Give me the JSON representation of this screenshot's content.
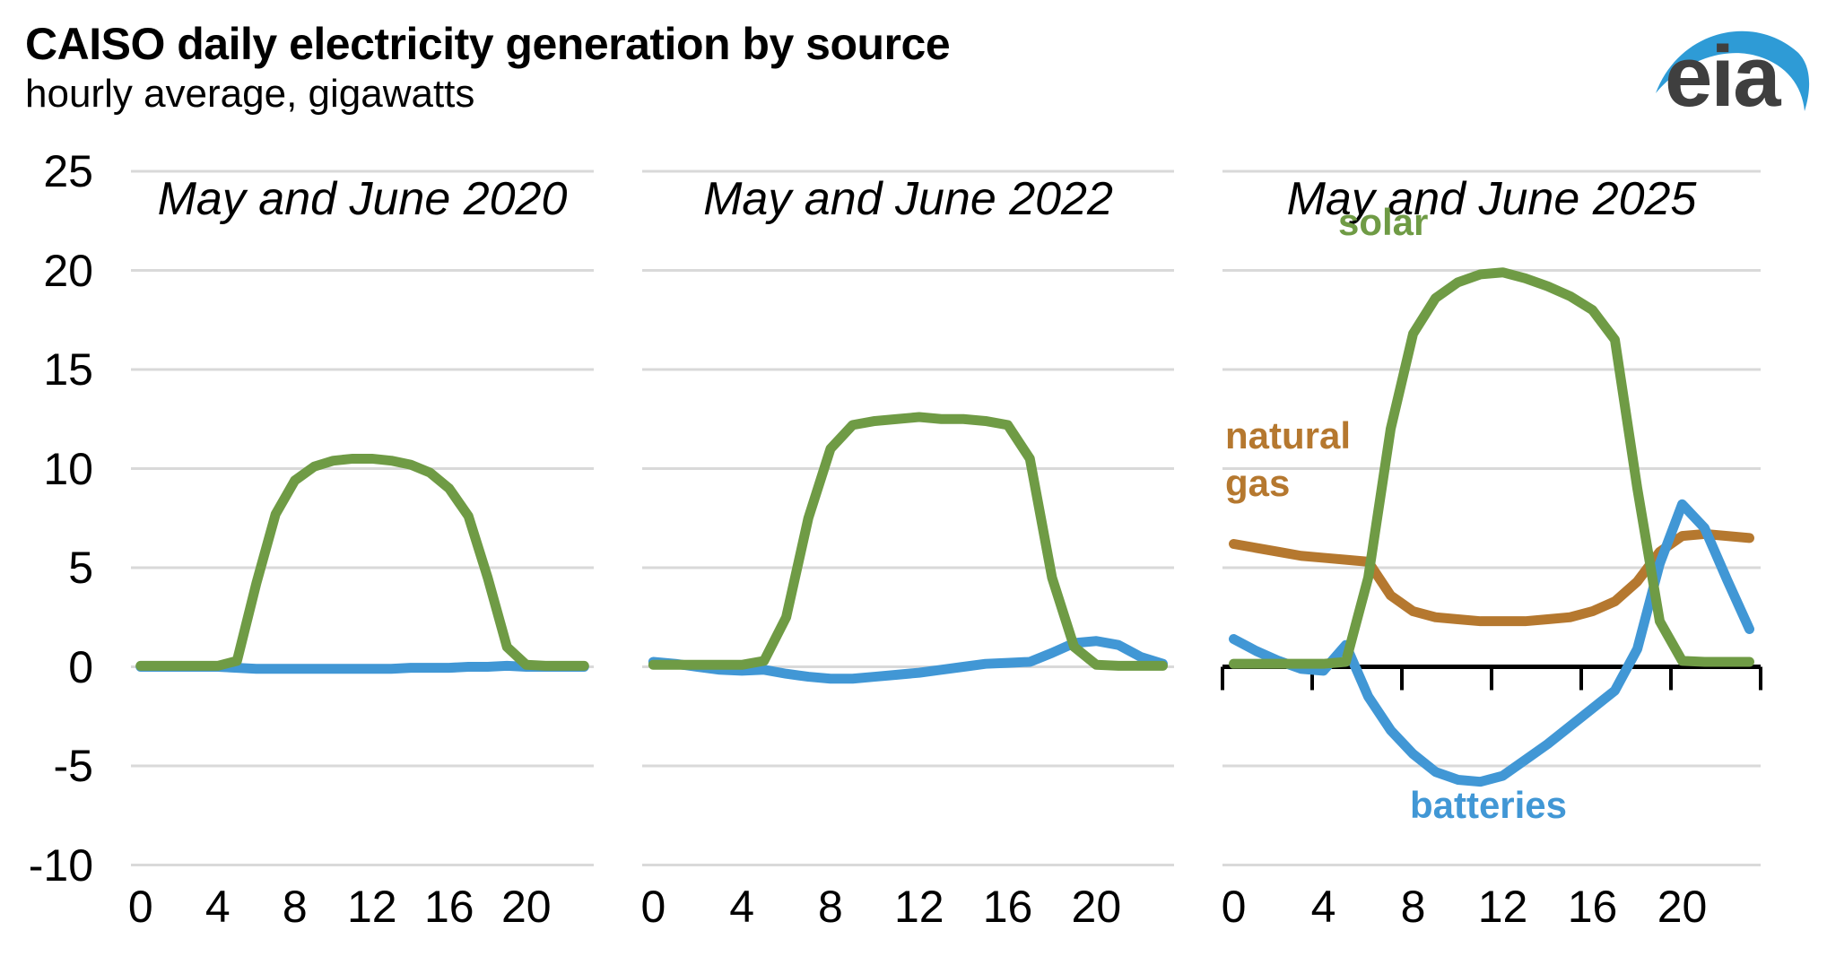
{
  "header": {
    "title": "CAISO daily electricity generation by source",
    "subtitle": "hourly average, gigawatts"
  },
  "logo": {
    "text": "eia",
    "text_color": "#3F3F3F",
    "swoosh_color": "#2E9BD6"
  },
  "axes": {
    "y_ticks": [
      25,
      20,
      15,
      10,
      5,
      0,
      -5,
      -10
    ],
    "x_ticks": [
      0,
      4,
      8,
      12,
      16,
      20
    ],
    "ylim": [
      -10,
      25
    ],
    "xlim": [
      0,
      23
    ],
    "gridline_color": "#D9D9D9",
    "zero_axis_color": "#000000"
  },
  "chart_data": {
    "type": "line",
    "x_unit": "hour of day",
    "y_unit": "gigawatts",
    "hours": [
      0,
      1,
      2,
      3,
      4,
      5,
      6,
      7,
      8,
      9,
      10,
      11,
      12,
      13,
      14,
      15,
      16,
      17,
      18,
      19,
      20,
      21,
      22,
      23
    ],
    "ylim": [
      -10,
      25
    ],
    "grid": "horizontal",
    "legend_position": "inline-annotations",
    "panels": [
      {
        "title": "May and June 2020",
        "series": [
          {
            "name": "batteries",
            "color": "#4197D5",
            "values": [
              0,
              0,
              0,
              0,
              0,
              -0.05,
              -0.1,
              -0.1,
              -0.1,
              -0.1,
              -0.1,
              -0.1,
              -0.1,
              -0.1,
              -0.05,
              -0.05,
              -0.05,
              0,
              0,
              0.05,
              0,
              0,
              0,
              0
            ]
          },
          {
            "name": "solar",
            "color": "#6F9B45",
            "values": [
              0.05,
              0.05,
              0.05,
              0.05,
              0.05,
              0.3,
              4.2,
              7.7,
              9.4,
              10.1,
              10.4,
              10.5,
              10.5,
              10.4,
              10.2,
              9.8,
              9.0,
              7.6,
              4.5,
              1.0,
              0.1,
              0.05,
              0.05,
              0.05
            ]
          }
        ]
      },
      {
        "title": "May and June 2022",
        "series": [
          {
            "name": "batteries",
            "color": "#4197D5",
            "values": [
              0.25,
              0.15,
              0,
              -0.15,
              -0.2,
              -0.15,
              -0.35,
              -0.5,
              -0.6,
              -0.6,
              -0.5,
              -0.4,
              -0.3,
              -0.15,
              0,
              0.15,
              0.2,
              0.25,
              0.7,
              1.2,
              1.3,
              1.1,
              0.5,
              0.15
            ]
          },
          {
            "name": "solar",
            "color": "#6F9B45",
            "values": [
              0.1,
              0.1,
              0.1,
              0.1,
              0.1,
              0.3,
              2.5,
              7.5,
              11.0,
              12.2,
              12.4,
              12.5,
              12.6,
              12.5,
              12.5,
              12.4,
              12.2,
              10.5,
              4.5,
              1.0,
              0.1,
              0.05,
              0.05,
              0.05
            ]
          }
        ]
      },
      {
        "title": "May and June 2025",
        "series": [
          {
            "name": "natural gas",
            "color": "#B5782F",
            "values": [
              6.2,
              6.0,
              5.8,
              5.6,
              5.5,
              5.4,
              5.3,
              3.6,
              2.8,
              2.5,
              2.4,
              2.3,
              2.3,
              2.3,
              2.4,
              2.5,
              2.8,
              3.3,
              4.3,
              5.8,
              6.6,
              6.7,
              6.6,
              6.5
            ]
          },
          {
            "name": "batteries",
            "color": "#4197D5",
            "values": [
              1.4,
              0.8,
              0.3,
              -0.1,
              -0.2,
              1.1,
              -1.5,
              -3.2,
              -4.4,
              -5.3,
              -5.7,
              -5.8,
              -5.5,
              -4.7,
              -3.9,
              -3.0,
              -2.1,
              -1.2,
              0.9,
              5.2,
              8.2,
              7.0,
              4.4,
              1.9
            ]
          },
          {
            "name": "solar",
            "color": "#6F9B45",
            "values": [
              0.15,
              0.15,
              0.15,
              0.15,
              0.15,
              0.25,
              4.5,
              12.0,
              16.8,
              18.6,
              19.4,
              19.8,
              19.9,
              19.6,
              19.2,
              18.7,
              18.0,
              16.5,
              9.0,
              2.3,
              0.3,
              0.25,
              0.25,
              0.25
            ]
          }
        ],
        "annotations": [
          {
            "text": "solar",
            "series": "solar",
            "color": "#6F9B45"
          },
          {
            "text": "natural gas",
            "series": "natural gas",
            "color": "#B5782F"
          },
          {
            "text": "batteries",
            "series": "batteries",
            "color": "#4197D5"
          }
        ]
      }
    ]
  }
}
